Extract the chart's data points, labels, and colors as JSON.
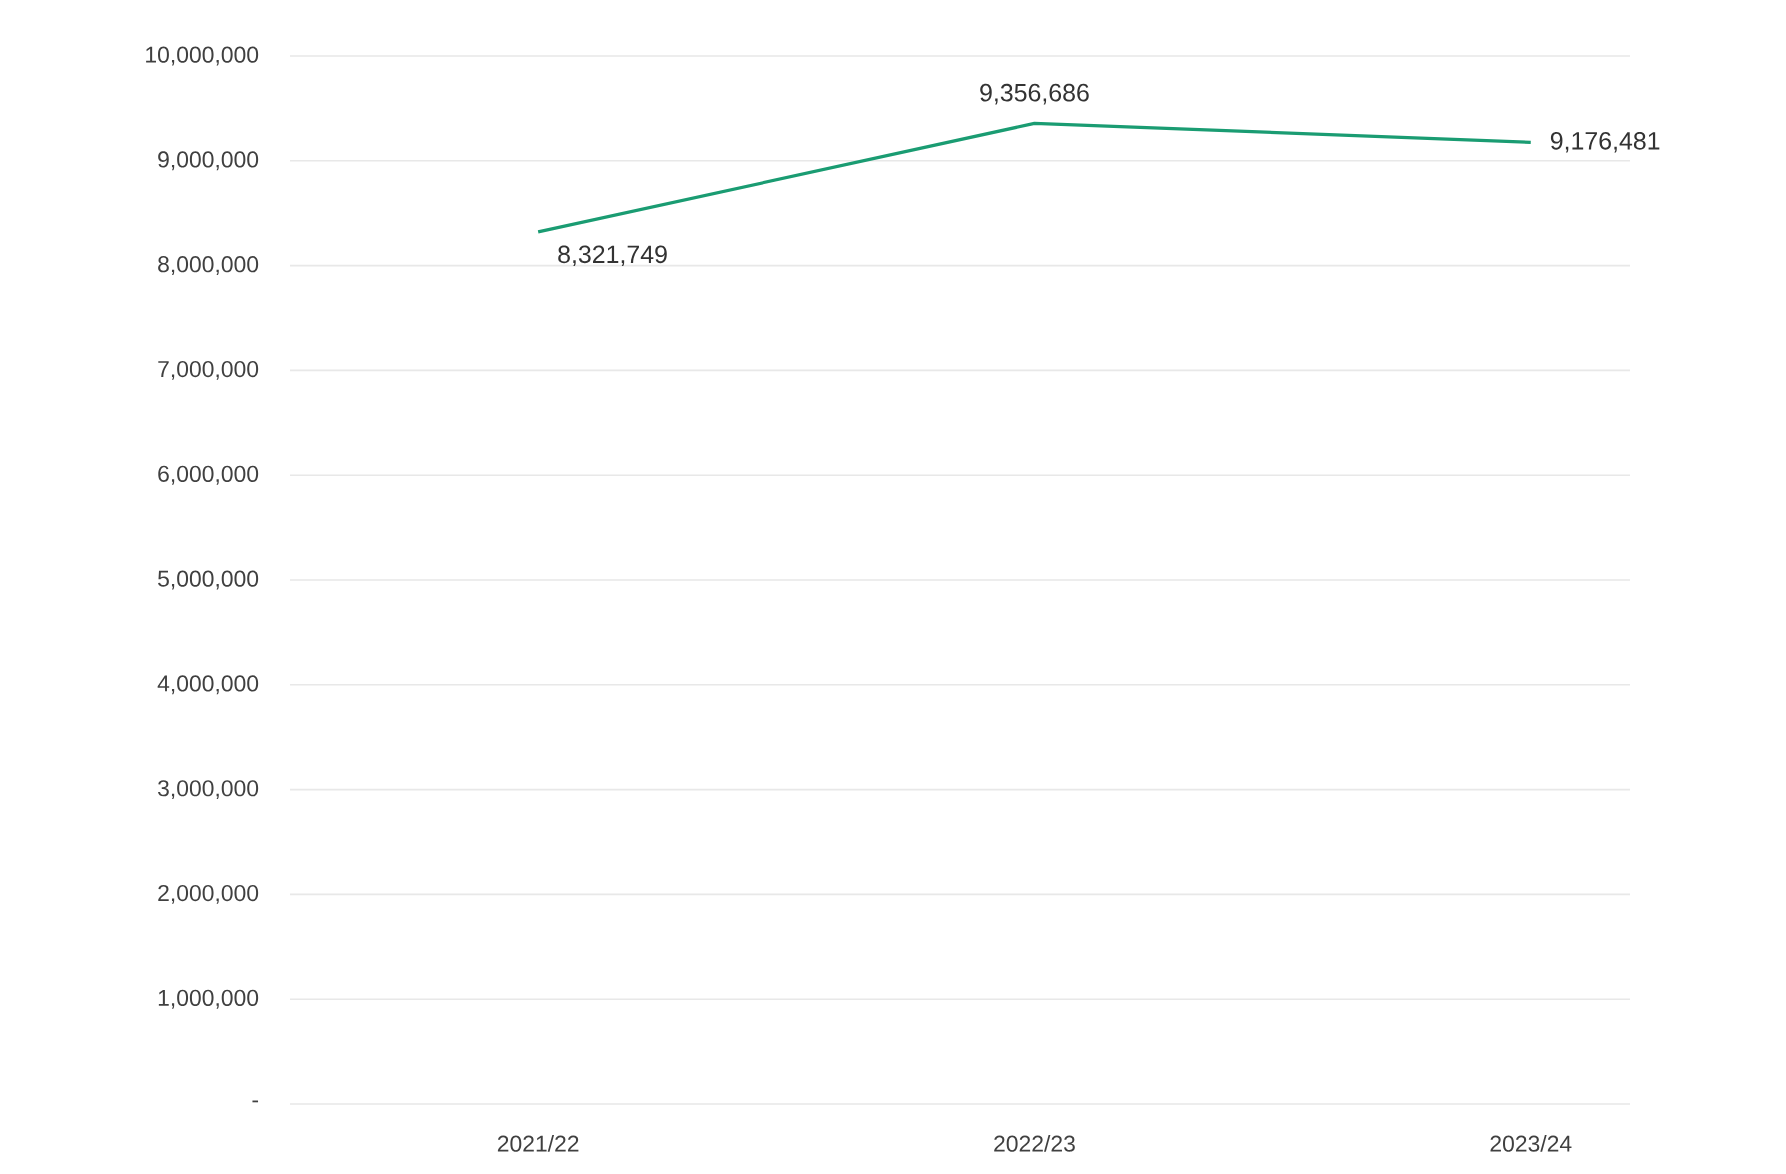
{
  "chart_data": {
    "type": "line",
    "categories": [
      "2021/22",
      "2022/23",
      "2023/24"
    ],
    "series": [
      {
        "color": "#1a9c72",
        "values": [
          8321749,
          9356686,
          9176481
        ],
        "value_labels": [
          "8,321,749",
          "9,356,686",
          "9,176,481"
        ]
      }
    ],
    "ylim": [
      0,
      10000000
    ],
    "yticks": [
      {
        "value": 0,
        "label": "-"
      },
      {
        "value": 1000000,
        "label": "1,000,000"
      },
      {
        "value": 2000000,
        "label": "2,000,000"
      },
      {
        "value": 3000000,
        "label": "3,000,000"
      },
      {
        "value": 4000000,
        "label": "4,000,000"
      },
      {
        "value": 5000000,
        "label": "5,000,000"
      },
      {
        "value": 6000000,
        "label": "6,000,000"
      },
      {
        "value": 7000000,
        "label": "7,000,000"
      },
      {
        "value": 8000000,
        "label": "8,000,000"
      },
      {
        "value": 9000000,
        "label": "9,000,000"
      },
      {
        "value": 10000000,
        "label": "10,000,000"
      }
    ],
    "grid": "y",
    "legend": false,
    "marker": "none",
    "line_style": "solid"
  }
}
